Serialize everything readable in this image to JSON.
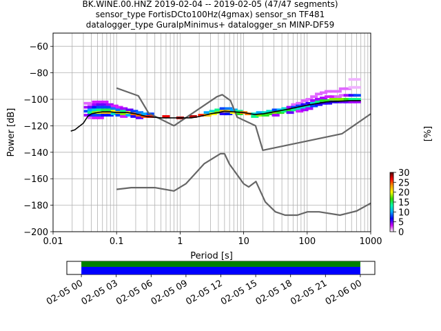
{
  "chart_data": {
    "type": "heatmap",
    "title_lines": [
      "BK.WINE.00.HNZ   2019-02-04 -- 2019-02-05  (47/47 segments)",
      "sensor_type FortisDCto100Hz(4gmax) sensor_sn TF481",
      "datalogger_type GuralpMinimus+ datalogger_sn MINP-DF59"
    ],
    "xlabel": "Period [s]",
    "ylabel": "Power [dB]",
    "xscale": "log",
    "xlim": [
      0.01,
      1000
    ],
    "ylim": [
      -200,
      -50
    ],
    "xticks": [
      {
        "v": 0.01,
        "label": "0.01"
      },
      {
        "v": 0.1,
        "label": "0.1"
      },
      {
        "v": 1,
        "label": "1"
      },
      {
        "v": 10,
        "label": "10"
      },
      {
        "v": 100,
        "label": "100"
      },
      {
        "v": 1000,
        "label": "1000"
      }
    ],
    "yticks": [
      {
        "v": -60,
        "label": "−60"
      },
      {
        "v": -80,
        "label": "−80"
      },
      {
        "v": -100,
        "label": "−100"
      },
      {
        "v": -120,
        "label": "−120"
      },
      {
        "v": -140,
        "label": "−140"
      },
      {
        "v": -160,
        "label": "−160"
      },
      {
        "v": -180,
        "label": "−180"
      },
      {
        "v": -200,
        "label": "−200"
      }
    ],
    "grid": true,
    "colorbar": {
      "label": "[%]",
      "range": [
        0,
        30
      ],
      "ticks": [
        {
          "v": 0,
          "label": "0"
        },
        {
          "v": 5,
          "label": "5"
        },
        {
          "v": 10,
          "label": "10"
        },
        {
          "v": 15,
          "label": "15"
        },
        {
          "v": 20,
          "label": "20"
        },
        {
          "v": 25,
          "label": "25"
        },
        {
          "v": 30,
          "label": "30"
        }
      ],
      "colormap": [
        "#ffffff",
        "#cc00ff",
        "#0000ff",
        "#00aaff",
        "#00ffaa",
        "#33dd00",
        "#ffff00",
        "#ff9900",
        "#ff0000",
        "#550000"
      ]
    },
    "mode_line": {
      "x": [
        0.019,
        0.022,
        0.025,
        0.03,
        0.035,
        0.04,
        0.05,
        0.06,
        0.08,
        0.1,
        0.15,
        0.2,
        0.3,
        0.5,
        0.7,
        1,
        1.5,
        2,
        3,
        4,
        5,
        7,
        10,
        15,
        20,
        30,
        50,
        70,
        100,
        150,
        200,
        300,
        500,
        700
      ],
      "y": [
        -124,
        -123,
        -121,
        -118,
        -113,
        -111,
        -110,
        -109.5,
        -109.5,
        -110,
        -110,
        -111,
        -113,
        -114,
        -114,
        -114,
        -114,
        -113,
        -111,
        -110,
        -109,
        -109.5,
        -110,
        -111.5,
        -111,
        -109.5,
        -107.5,
        -106,
        -104.5,
        -103,
        -102,
        -101.5,
        -101,
        -101
      ]
    },
    "psd_bins": [
      {
        "x": 0.035,
        "y": -103,
        "pct": 2
      },
      {
        "x": 0.035,
        "y": -106,
        "pct": 4
      },
      {
        "x": 0.035,
        "y": -109,
        "pct": 8
      },
      {
        "x": 0.035,
        "y": -112,
        "pct": 4
      },
      {
        "x": 0.04,
        "y": -104,
        "pct": 2
      },
      {
        "x": 0.04,
        "y": -106,
        "pct": 5
      },
      {
        "x": 0.04,
        "y": -108,
        "pct": 10
      },
      {
        "x": 0.04,
        "y": -110,
        "pct": 14
      },
      {
        "x": 0.04,
        "y": -112,
        "pct": 6
      },
      {
        "x": 0.04,
        "y": -114,
        "pct": 2
      },
      {
        "x": 0.047,
        "y": -102,
        "pct": 3
      },
      {
        "x": 0.047,
        "y": -104,
        "pct": 4
      },
      {
        "x": 0.047,
        "y": -106,
        "pct": 7
      },
      {
        "x": 0.047,
        "y": -108,
        "pct": 12
      },
      {
        "x": 0.047,
        "y": -110,
        "pct": 18
      },
      {
        "x": 0.047,
        "y": -112,
        "pct": 8
      },
      {
        "x": 0.047,
        "y": -114,
        "pct": 3
      },
      {
        "x": 0.055,
        "y": -102,
        "pct": 3
      },
      {
        "x": 0.055,
        "y": -104,
        "pct": 5
      },
      {
        "x": 0.055,
        "y": -106,
        "pct": 8
      },
      {
        "x": 0.055,
        "y": -108,
        "pct": 14
      },
      {
        "x": 0.055,
        "y": -110,
        "pct": 20
      },
      {
        "x": 0.055,
        "y": -112,
        "pct": 8
      },
      {
        "x": 0.055,
        "y": -114,
        "pct": 3
      },
      {
        "x": 0.065,
        "y": -102,
        "pct": 3
      },
      {
        "x": 0.065,
        "y": -104,
        "pct": 5
      },
      {
        "x": 0.065,
        "y": -106,
        "pct": 8
      },
      {
        "x": 0.065,
        "y": -108,
        "pct": 15
      },
      {
        "x": 0.065,
        "y": -110,
        "pct": 22
      },
      {
        "x": 0.065,
        "y": -112,
        "pct": 7
      },
      {
        "x": 0.078,
        "y": -104,
        "pct": 4
      },
      {
        "x": 0.078,
        "y": -106,
        "pct": 8
      },
      {
        "x": 0.078,
        "y": -108,
        "pct": 15
      },
      {
        "x": 0.078,
        "y": -110,
        "pct": 22
      },
      {
        "x": 0.078,
        "y": -112,
        "pct": 7
      },
      {
        "x": 0.093,
        "y": -105,
        "pct": 3
      },
      {
        "x": 0.093,
        "y": -107,
        "pct": 9
      },
      {
        "x": 0.093,
        "y": -109,
        "pct": 20
      },
      {
        "x": 0.093,
        "y": -111,
        "pct": 12
      },
      {
        "x": 0.11,
        "y": -106,
        "pct": 3
      },
      {
        "x": 0.11,
        "y": -108,
        "pct": 9
      },
      {
        "x": 0.11,
        "y": -110,
        "pct": 22
      },
      {
        "x": 0.11,
        "y": -112,
        "pct": 8
      },
      {
        "x": 0.13,
        "y": -107,
        "pct": 4
      },
      {
        "x": 0.13,
        "y": -109,
        "pct": 14
      },
      {
        "x": 0.13,
        "y": -111,
        "pct": 18
      },
      {
        "x": 0.13,
        "y": -113,
        "pct": 3
      },
      {
        "x": 0.16,
        "y": -108,
        "pct": 5
      },
      {
        "x": 0.16,
        "y": -110,
        "pct": 20
      },
      {
        "x": 0.16,
        "y": -112,
        "pct": 10
      },
      {
        "x": 0.19,
        "y": -109,
        "pct": 8
      },
      {
        "x": 0.19,
        "y": -111,
        "pct": 24
      },
      {
        "x": 0.19,
        "y": -113,
        "pct": 6
      },
      {
        "x": 0.23,
        "y": -110,
        "pct": 9
      },
      {
        "x": 0.23,
        "y": -112,
        "pct": 24
      },
      {
        "x": 0.23,
        "y": -114,
        "pct": 5
      },
      {
        "x": 0.28,
        "y": -111,
        "pct": 10
      },
      {
        "x": 0.28,
        "y": -113,
        "pct": 25
      },
      {
        "x": 0.34,
        "y": -111,
        "pct": 8
      },
      {
        "x": 0.34,
        "y": -113,
        "pct": 26
      },
      {
        "x": 0.6,
        "y": -113,
        "pct": 27
      },
      {
        "x": 1.0,
        "y": -114,
        "pct": 28
      },
      {
        "x": 1.6,
        "y": -113,
        "pct": 28
      },
      {
        "x": 2.2,
        "y": -112,
        "pct": 26
      },
      {
        "x": 2.7,
        "y": -110,
        "pct": 10
      },
      {
        "x": 2.7,
        "y": -112,
        "pct": 22
      },
      {
        "x": 3.3,
        "y": -109,
        "pct": 12
      },
      {
        "x": 3.3,
        "y": -111,
        "pct": 20
      },
      {
        "x": 4.0,
        "y": -108,
        "pct": 14
      },
      {
        "x": 4.0,
        "y": -110,
        "pct": 18
      },
      {
        "x": 4.8,
        "y": -107,
        "pct": 8
      },
      {
        "x": 4.8,
        "y": -109,
        "pct": 22
      },
      {
        "x": 4.8,
        "y": -111,
        "pct": 6
      },
      {
        "x": 5.8,
        "y": -107,
        "pct": 9
      },
      {
        "x": 5.8,
        "y": -109,
        "pct": 22
      },
      {
        "x": 5.8,
        "y": -111,
        "pct": 7
      },
      {
        "x": 7.0,
        "y": -108,
        "pct": 10
      },
      {
        "x": 7.0,
        "y": -110,
        "pct": 20
      },
      {
        "x": 8.5,
        "y": -109,
        "pct": 14
      },
      {
        "x": 8.5,
        "y": -111,
        "pct": 16
      },
      {
        "x": 10,
        "y": -110,
        "pct": 24
      },
      {
        "x": 12,
        "y": -111,
        "pct": 24
      },
      {
        "x": 15,
        "y": -111,
        "pct": 12
      },
      {
        "x": 15,
        "y": -113,
        "pct": 14
      },
      {
        "x": 18,
        "y": -110,
        "pct": 10
      },
      {
        "x": 18,
        "y": -112,
        "pct": 18
      },
      {
        "x": 22,
        "y": -110,
        "pct": 12
      },
      {
        "x": 22,
        "y": -112,
        "pct": 16
      },
      {
        "x": 26,
        "y": -109,
        "pct": 12
      },
      {
        "x": 26,
        "y": -111,
        "pct": 16
      },
      {
        "x": 32,
        "y": -108,
        "pct": 8
      },
      {
        "x": 32,
        "y": -110,
        "pct": 18
      },
      {
        "x": 32,
        "y": -112,
        "pct": 4
      },
      {
        "x": 38,
        "y": -108,
        "pct": 10
      },
      {
        "x": 38,
        "y": -110,
        "pct": 16
      },
      {
        "x": 45,
        "y": -107,
        "pct": 12
      },
      {
        "x": 45,
        "y": -109,
        "pct": 14
      },
      {
        "x": 54,
        "y": -106,
        "pct": 4
      },
      {
        "x": 54,
        "y": -108,
        "pct": 16
      },
      {
        "x": 54,
        "y": -110,
        "pct": 5
      },
      {
        "x": 64,
        "y": -104,
        "pct": 2
      },
      {
        "x": 64,
        "y": -106,
        "pct": 8
      },
      {
        "x": 64,
        "y": -108,
        "pct": 14
      },
      {
        "x": 76,
        "y": -103,
        "pct": 2
      },
      {
        "x": 76,
        "y": -105,
        "pct": 8
      },
      {
        "x": 76,
        "y": -107,
        "pct": 12
      },
      {
        "x": 76,
        "y": -109,
        "pct": 3
      },
      {
        "x": 91,
        "y": -101,
        "pct": 2
      },
      {
        "x": 91,
        "y": -104,
        "pct": 6
      },
      {
        "x": 91,
        "y": -106,
        "pct": 12
      },
      {
        "x": 91,
        "y": -108,
        "pct": 4
      },
      {
        "x": 108,
        "y": -100,
        "pct": 2
      },
      {
        "x": 108,
        "y": -103,
        "pct": 6
      },
      {
        "x": 108,
        "y": -105,
        "pct": 12
      },
      {
        "x": 108,
        "y": -107,
        "pct": 4
      },
      {
        "x": 128,
        "y": -98,
        "pct": 2
      },
      {
        "x": 128,
        "y": -101,
        "pct": 4
      },
      {
        "x": 128,
        "y": -103,
        "pct": 12
      },
      {
        "x": 128,
        "y": -105,
        "pct": 8
      },
      {
        "x": 152,
        "y": -96,
        "pct": 2
      },
      {
        "x": 152,
        "y": -100,
        "pct": 4
      },
      {
        "x": 152,
        "y": -102,
        "pct": 14
      },
      {
        "x": 152,
        "y": -104,
        "pct": 6
      },
      {
        "x": 181,
        "y": -95,
        "pct": 2
      },
      {
        "x": 181,
        "y": -99,
        "pct": 4
      },
      {
        "x": 181,
        "y": -101,
        "pct": 16
      },
      {
        "x": 181,
        "y": -103,
        "pct": 6
      },
      {
        "x": 215,
        "y": -94,
        "pct": 2
      },
      {
        "x": 215,
        "y": -98,
        "pct": 3
      },
      {
        "x": 215,
        "y": -101,
        "pct": 16
      },
      {
        "x": 215,
        "y": -103,
        "pct": 6
      },
      {
        "x": 256,
        "y": -94,
        "pct": 2
      },
      {
        "x": 256,
        "y": -98,
        "pct": 3
      },
      {
        "x": 256,
        "y": -100,
        "pct": 18
      },
      {
        "x": 256,
        "y": -102,
        "pct": 6
      },
      {
        "x": 304,
        "y": -94,
        "pct": 2
      },
      {
        "x": 304,
        "y": -98,
        "pct": 2
      },
      {
        "x": 304,
        "y": -100,
        "pct": 18
      },
      {
        "x": 304,
        "y": -102,
        "pct": 6
      },
      {
        "x": 362,
        "y": -92,
        "pct": 2
      },
      {
        "x": 362,
        "y": -97,
        "pct": 2
      },
      {
        "x": 362,
        "y": -100,
        "pct": 18
      },
      {
        "x": 362,
        "y": -102,
        "pct": 5
      },
      {
        "x": 430,
        "y": -92,
        "pct": 2
      },
      {
        "x": 430,
        "y": -97,
        "pct": 4
      },
      {
        "x": 430,
        "y": -100,
        "pct": 16
      },
      {
        "x": 430,
        "y": -102,
        "pct": 5
      },
      {
        "x": 512,
        "y": -85,
        "pct": 1
      },
      {
        "x": 512,
        "y": -91,
        "pct": 1
      },
      {
        "x": 512,
        "y": -97,
        "pct": 6
      },
      {
        "x": 512,
        "y": -100,
        "pct": 14
      },
      {
        "x": 512,
        "y": -102,
        "pct": 4
      },
      {
        "x": 610,
        "y": -85,
        "pct": 1
      },
      {
        "x": 610,
        "y": -91,
        "pct": 1
      },
      {
        "x": 610,
        "y": -97,
        "pct": 8
      },
      {
        "x": 610,
        "y": -100,
        "pct": 14
      },
      {
        "x": 610,
        "y": -102,
        "pct": 4
      }
    ],
    "noise_models": [
      {
        "x": [
          0.1,
          0.22,
          0.32,
          0.8,
          3.8,
          4.6,
          6.2,
          7.9,
          15.4,
          20,
          354,
          1000
        ],
        "y": [
          -91.5,
          -97.4,
          -110.5,
          -120,
          -98,
          -96.5,
          -101,
          -113.5,
          -120,
          -138.5,
          -126,
          -111
        ]
      },
      {
        "x": [
          0.1,
          0.17,
          0.4,
          0.8,
          1.24,
          2.4,
          4.3,
          5.0,
          6.0,
          10,
          12,
          15.6,
          21.9,
          31.6,
          45,
          70,
          101,
          154,
          328,
          600,
          1000
        ],
        "y": [
          -168,
          -166.7,
          -166.7,
          -169.2,
          -163.7,
          -148.6,
          -141.1,
          -141.1,
          -149,
          -163.8,
          -166.2,
          -162.1,
          -177.5,
          -185,
          -187.5,
          -187.5,
          -185,
          -185,
          -187.5,
          -184.4,
          -178.5
        ]
      }
    ],
    "data_availability": {
      "time_ticks": [
        "02-05 00",
        "02-05 03",
        "02-05 06",
        "02-05 09",
        "02-05 12",
        "02-05 15",
        "02-05 18",
        "02-05 21",
        "02-06 00"
      ],
      "range_hours": [
        -1.25,
        25.25
      ],
      "coverage_hours": [
        0,
        24
      ],
      "colors": {
        "top": "#008000",
        "bottom": "#0000ff"
      }
    }
  }
}
